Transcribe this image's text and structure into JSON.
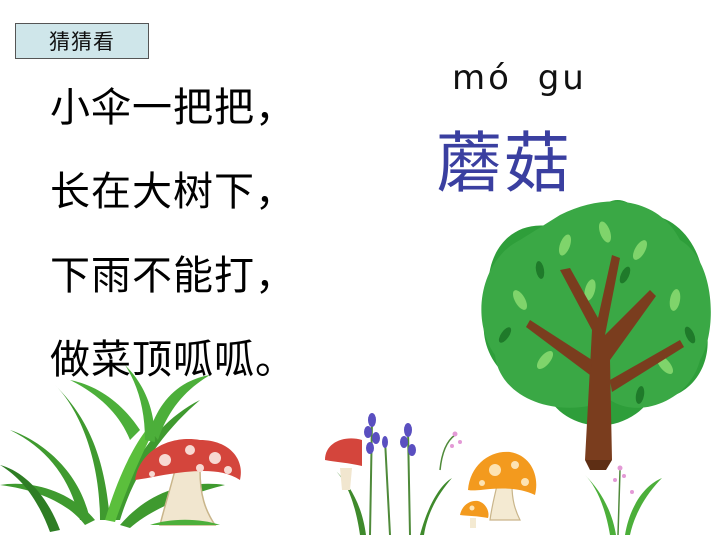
{
  "tag_label": "猜猜看",
  "riddle": {
    "lines": [
      "小伞一把把，",
      "长在大树下，",
      "下雨不能打，",
      "做菜顶呱呱。"
    ]
  },
  "answer": {
    "pinyin": "mó  gu",
    "characters": "蘑菇"
  },
  "illustration": {
    "tree_icon": "tree-icon",
    "mushroom_icon": "mushroom-icon",
    "grass_icon": "grass-icon",
    "flower_icon": "lavender-icon",
    "colors": {
      "leaf_green": "#2e9e3a",
      "trunk_brown": "#7a3d1e",
      "mushroom_red": "#d4453c",
      "mushroom_orange": "#f39a1e",
      "lavender": "#5a4fc0",
      "answer_blue": "#3a3fa0"
    }
  }
}
